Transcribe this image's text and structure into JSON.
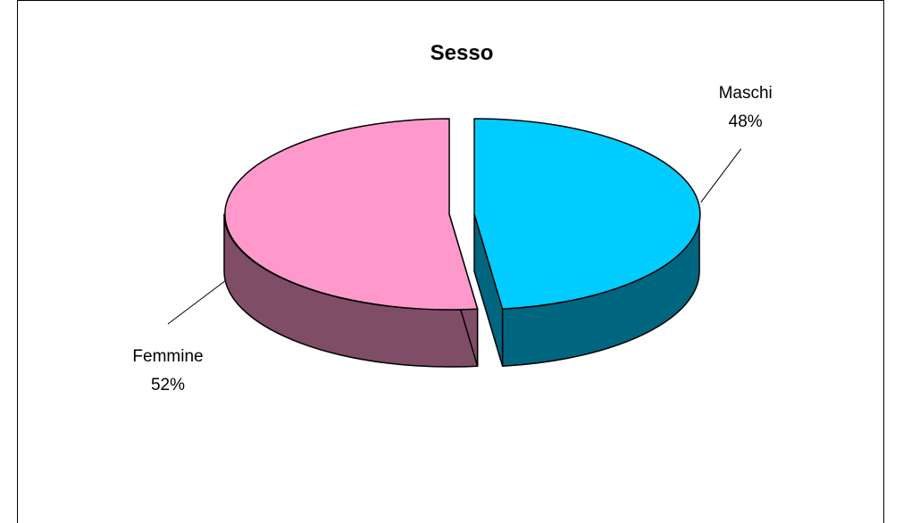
{
  "chart_data": {
    "type": "pie",
    "title": "Sesso",
    "slices": [
      {
        "label": "Maschi",
        "value": 48,
        "value_label": "48%",
        "color": "#00ccff",
        "side_color": "#006680"
      },
      {
        "label": "Femmine",
        "value": 52,
        "value_label": "52%",
        "color": "#ff99cc",
        "side_color": "#804d66"
      }
    ],
    "style": "3d-exploded-pie"
  }
}
